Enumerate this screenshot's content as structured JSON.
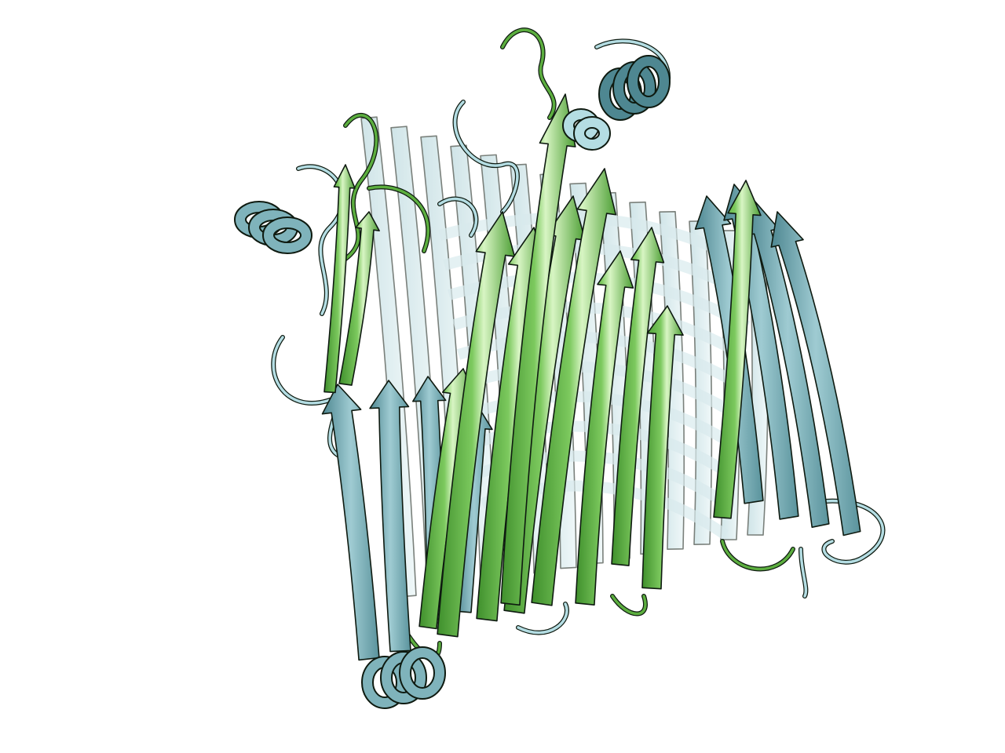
{
  "image": {
    "subject": "protein-structure-cartoon",
    "background": "#ffffff",
    "palette": {
      "green_dark": "#3f8f2c",
      "green_mid": "#5cae3f",
      "green_light": "#9ed982",
      "green_highlight": "#d8f5c4",
      "teal_dark": "#4e8791",
      "teal_mid": "#7fb3bb",
      "teal_light": "#b4dde3",
      "teal_ghost": "#cfe7ea",
      "outline": "#0e1a10"
    },
    "structures": [
      {
        "id": "structure-green",
        "color_key": "green_mid"
      },
      {
        "id": "structure-teal",
        "color_key": "teal_mid"
      }
    ]
  }
}
